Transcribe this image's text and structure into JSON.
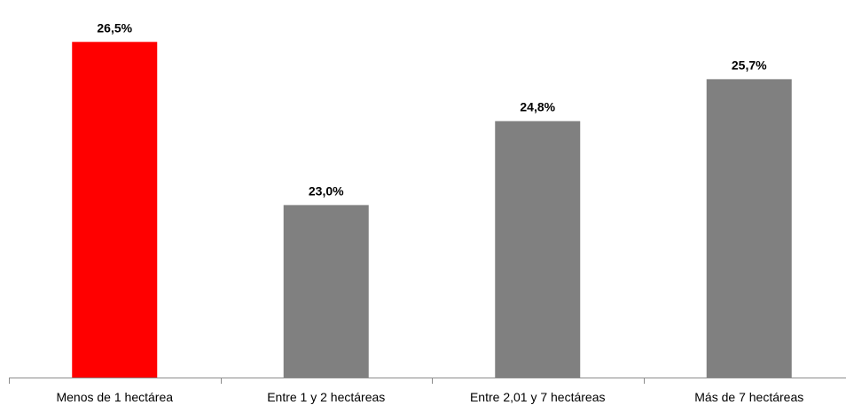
{
  "chart_data": {
    "type": "bar",
    "title": "",
    "xlabel": "",
    "ylabel": "",
    "categories": [
      "Menos de 1 hectárea",
      "Entre 1 y 2 hectáreas",
      "Entre 2,01 y 7 hectáreas",
      "Más de 7 hectáreas"
    ],
    "values": [
      26.5,
      23.0,
      24.8,
      25.7
    ],
    "value_labels": [
      "26,5%",
      "23,0%",
      "24,8%",
      "25,7%"
    ],
    "colors": [
      "#ff0000",
      "#808080",
      "#808080",
      "#808080"
    ],
    "ylim": [
      19.3,
      26.9
    ],
    "grid": false,
    "legend": "none"
  },
  "colors": {
    "highlight": "#ff0000",
    "default": "#808080",
    "axis": "#8c8c8c"
  }
}
